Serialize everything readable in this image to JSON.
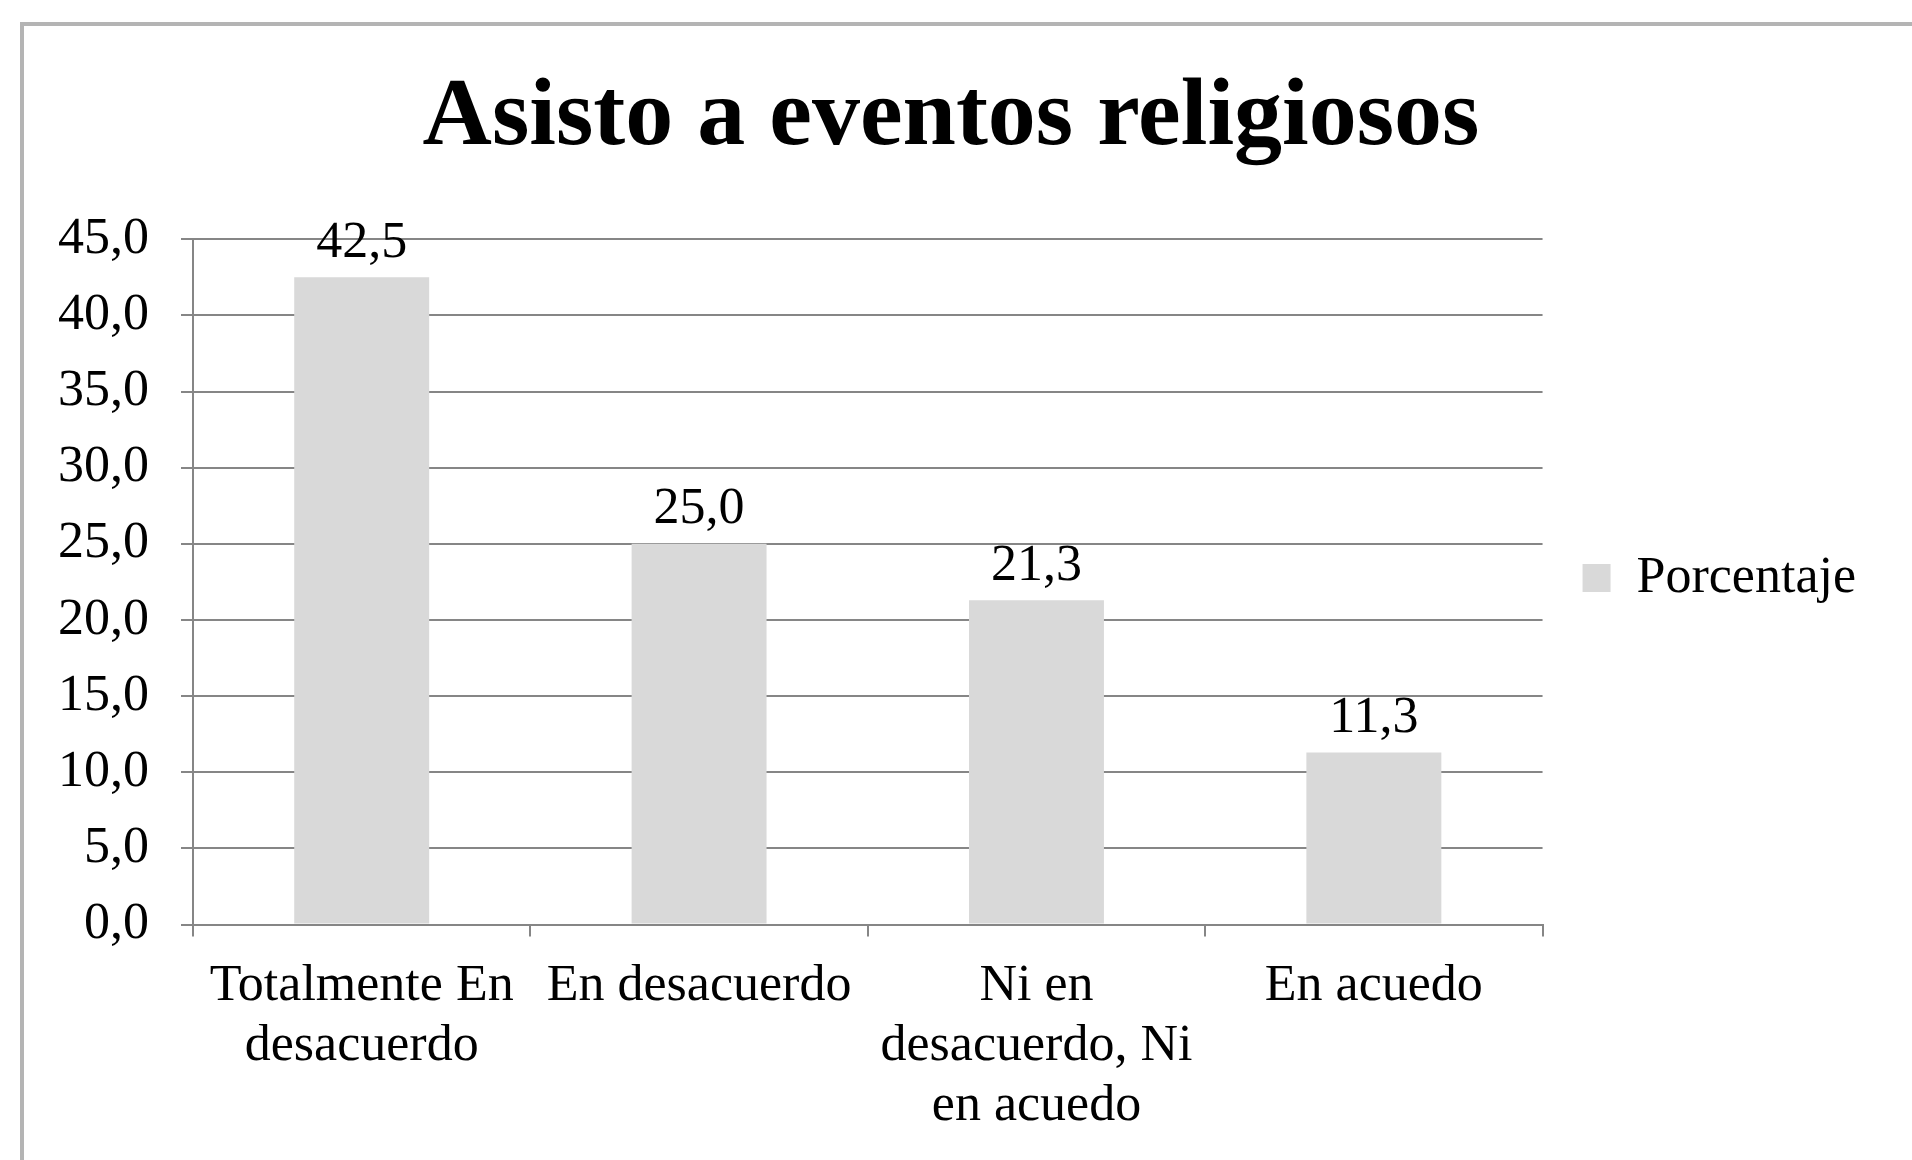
{
  "chart_data": {
    "type": "bar",
    "title": "Asisto a eventos religiosos",
    "categories": [
      "Totalmente En desacuerdo",
      "En desacuerdo",
      "Ni en desacuerdo, Ni en acuedo",
      "En acuedo"
    ],
    "series": [
      {
        "name": "Porcentaje",
        "color": "#d9d9d9",
        "values": [
          42.5,
          25.0,
          21.3,
          11.3
        ],
        "value_labels": [
          "42,5",
          "25,0",
          "21,3",
          "11,3"
        ]
      }
    ],
    "ylim": [
      0,
      45
    ],
    "yticks": [
      {
        "value": 0,
        "label": "0,0"
      },
      {
        "value": 5,
        "label": "5,0"
      },
      {
        "value": 10,
        "label": "10,0"
      },
      {
        "value": 15,
        "label": "15,0"
      },
      {
        "value": 20,
        "label": "20,0"
      },
      {
        "value": 25,
        "label": "25,0"
      },
      {
        "value": 30,
        "label": "30,0"
      },
      {
        "value": 35,
        "label": "35,0"
      },
      {
        "value": 40,
        "label": "40,0"
      },
      {
        "value": 45,
        "label": "45,0"
      }
    ],
    "grid": "y",
    "legend": "right"
  }
}
